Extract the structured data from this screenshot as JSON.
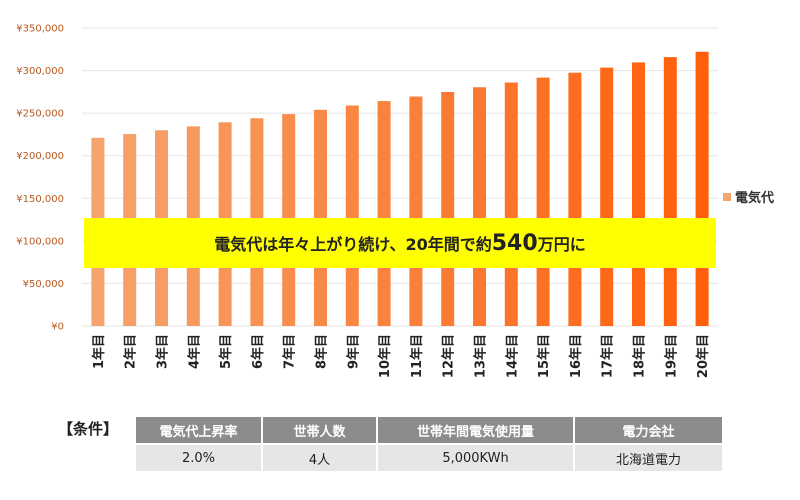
{
  "chart_data": {
    "type": "bar",
    "categories": [
      "1年目",
      "2年目",
      "3年目",
      "4年目",
      "5年目",
      "6年目",
      "7年目",
      "8年目",
      "9年目",
      "10年目",
      "11年目",
      "12年目",
      "13年目",
      "14年目",
      "15年目",
      "16年目",
      "17年目",
      "18年目",
      "19年目",
      "20年目"
    ],
    "series": [
      {
        "name": "電気代",
        "values": [
          221000,
          225400,
          229900,
          234500,
          239200,
          244000,
          248900,
          253900,
          259000,
          264200,
          269500,
          274900,
          280400,
          286000,
          291700,
          297500,
          303500,
          309600,
          315800,
          322100
        ]
      }
    ],
    "ylim": [
      0,
      350000
    ],
    "yticks": [
      "¥0",
      "¥50,000",
      "¥100,000",
      "¥150,000",
      "¥200,000",
      "¥250,000",
      "¥300,000",
      "¥350,000"
    ],
    "grid": true,
    "legend": "right",
    "colors": {
      "start": "#f4a46c",
      "end": "#ff5e0a"
    }
  },
  "banner": {
    "text_before": "電気代は年々上がり続け、20年間で約",
    "highlight": "540",
    "text_after": "万円に"
  },
  "conditions": {
    "label": "【条件】",
    "headers": [
      "電気代上昇率",
      "世帯人数",
      "世帯年間電気使用量",
      "電力会社"
    ],
    "values": [
      "2.0%",
      "4人",
      "5,000KWh",
      "北海道電力"
    ]
  }
}
